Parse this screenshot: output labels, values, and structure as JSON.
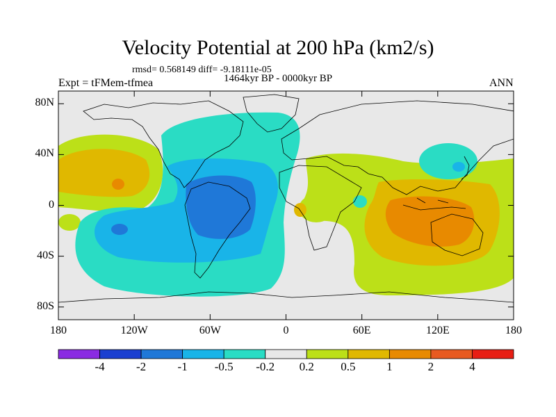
{
  "header": {
    "title": "Velocity Potential at 200 hPa (km2/s)",
    "stats": "rmsd= 0.568149 diff= -9.18111e-05",
    "period": "1464kyr BP - 0000kyr BP",
    "experiment": "Expt = tFMem-tfmea",
    "season": "ANN"
  },
  "map": {
    "projection": "cylindrical equidistant",
    "lon_range": [
      -180,
      180
    ],
    "lat_range": [
      -90,
      90
    ],
    "y_ticks": [
      {
        "lat": 80,
        "label": "80N"
      },
      {
        "lat": 40,
        "label": "40N"
      },
      {
        "lat": 0,
        "label": "0"
      },
      {
        "lat": -40,
        "label": "40S"
      },
      {
        "lat": -80,
        "label": "80S"
      }
    ],
    "x_ticks": [
      {
        "lon": -180,
        "label": "180"
      },
      {
        "lon": -120,
        "label": "120W"
      },
      {
        "lon": -60,
        "label": "60W"
      },
      {
        "lon": 0,
        "label": "0"
      },
      {
        "lon": 60,
        "label": "60E"
      },
      {
        "lon": 120,
        "label": "120E"
      },
      {
        "lon": 180,
        "label": "180"
      }
    ],
    "background_color": "#e8e8e8",
    "land_outline_color": "#000000"
  },
  "colorbar": {
    "levels": [
      "-4",
      "-2",
      "-1",
      "-0.5",
      "-0.2",
      "0.2",
      "0.5",
      "1",
      "2",
      "4"
    ],
    "colors": [
      "#8a2be2",
      "#1a3fd0",
      "#1f78d8",
      "#19b4e8",
      "#2adcc4",
      "#e8e8e8",
      "#bce018",
      "#e0b800",
      "#e88a00",
      "#e85a20",
      "#e81e14"
    ]
  }
}
